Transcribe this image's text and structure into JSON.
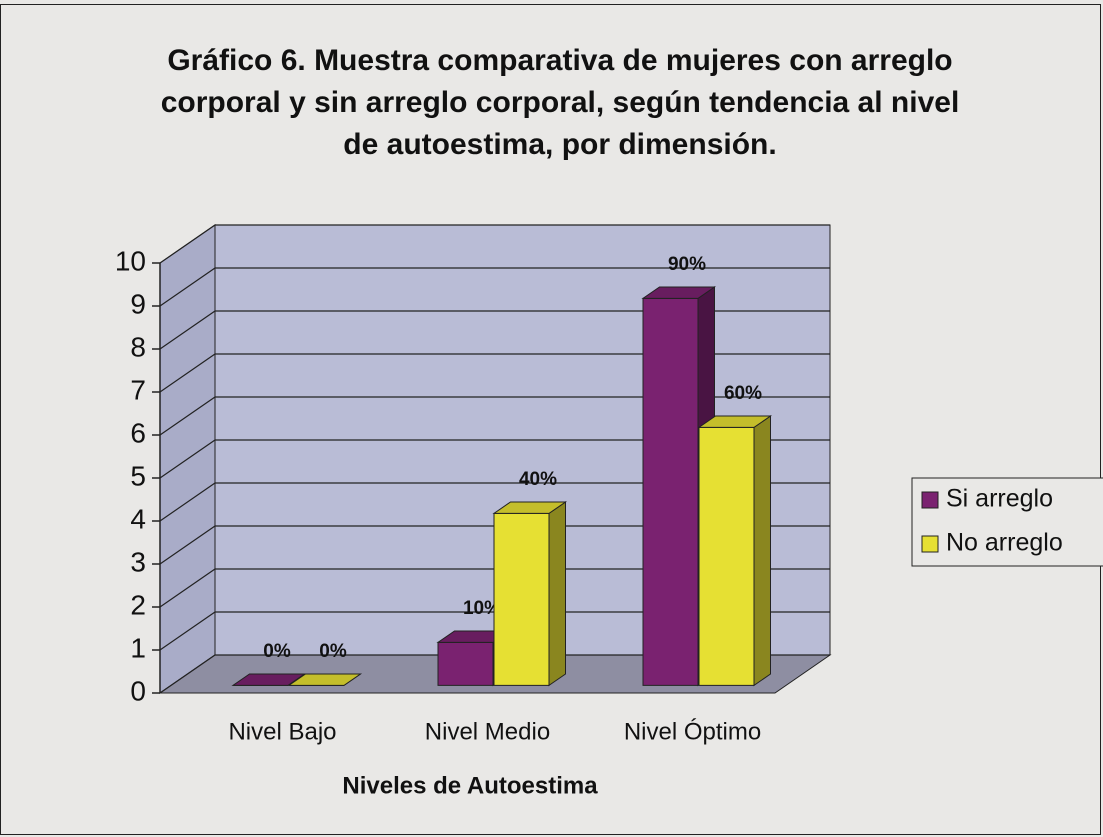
{
  "chart_data": {
    "type": "bar3d",
    "title": "Gráfico 6. Muestra  comparativa de mujeres con arreglo corporal y sin arreglo corporal, según tendencia al nivel de autoestima, por dimensión.",
    "x_label": "Niveles de Autoestima",
    "categories": [
      "Nivel Bajo",
      "Nivel Medio",
      "Nivel Óptimo"
    ],
    "series": [
      {
        "name": "Si arreglo",
        "color": "#7a2270",
        "values": [
          0,
          1,
          9
        ],
        "value_labels": [
          "0%",
          "10%",
          "90%"
        ]
      },
      {
        "name": "No arreglo",
        "color": "#e6e033",
        "values": [
          0,
          4,
          6
        ],
        "value_labels": [
          "0%",
          "40%",
          "60%"
        ]
      }
    ],
    "ylim": [
      0,
      10
    ],
    "yticks": [
      0,
      1,
      2,
      3,
      4,
      5,
      6,
      7,
      8,
      9,
      10
    ],
    "grid": true,
    "legend": "right"
  }
}
